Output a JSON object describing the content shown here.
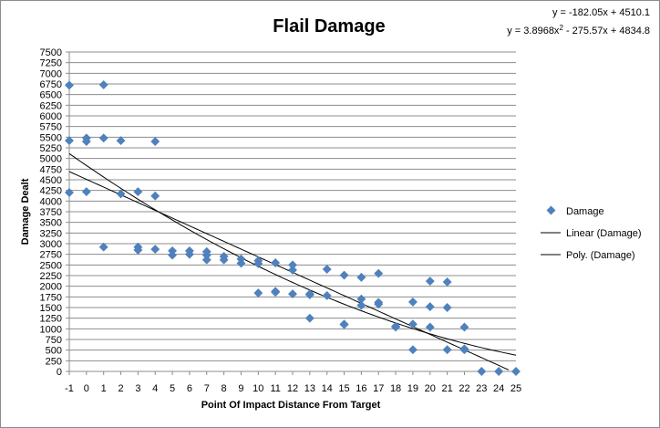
{
  "chart_data": {
    "type": "scatter",
    "title": "Flail Damage",
    "xlabel": "Point Of Impact Distance From Target",
    "ylabel": "Damage Dealt",
    "xlim": [
      -1,
      25
    ],
    "ylim": [
      0,
      7500
    ],
    "x_ticks": [
      -1,
      0,
      1,
      2,
      3,
      4,
      5,
      6,
      7,
      8,
      9,
      10,
      11,
      12,
      13,
      14,
      15,
      16,
      17,
      18,
      19,
      20,
      21,
      22,
      23,
      24,
      25
    ],
    "y_ticks": [
      0,
      250,
      500,
      750,
      1000,
      1250,
      1500,
      1750,
      2000,
      2250,
      2500,
      2750,
      3000,
      3250,
      3500,
      3750,
      4000,
      4250,
      4500,
      4750,
      5000,
      5250,
      5500,
      5750,
      6000,
      6250,
      6500,
      6750,
      7000,
      7250,
      7500
    ],
    "grid": "horizontal",
    "legend_position": "right",
    "marker_color": "#4f81bd",
    "series": [
      {
        "name": "Damage",
        "points": [
          [
            -1,
            6720
          ],
          [
            -1,
            5420
          ],
          [
            -1,
            4200
          ],
          [
            0,
            5480
          ],
          [
            0,
            5400
          ],
          [
            0,
            4220
          ],
          [
            1,
            6730
          ],
          [
            1,
            5480
          ],
          [
            1,
            2920
          ],
          [
            2,
            5420
          ],
          [
            2,
            4170
          ],
          [
            3,
            4220
          ],
          [
            3,
            2920
          ],
          [
            3,
            2850
          ],
          [
            4,
            5400
          ],
          [
            4,
            4120
          ],
          [
            4,
            2870
          ],
          [
            5,
            2830
          ],
          [
            5,
            2730
          ],
          [
            6,
            2830
          ],
          [
            6,
            2750
          ],
          [
            7,
            2810
          ],
          [
            7,
            2730
          ],
          [
            7,
            2620
          ],
          [
            8,
            2700
          ],
          [
            8,
            2620
          ],
          [
            9,
            2640
          ],
          [
            9,
            2540
          ],
          [
            10,
            2600
          ],
          [
            10,
            2530
          ],
          [
            10,
            1840
          ],
          [
            11,
            2550
          ],
          [
            11,
            1880
          ],
          [
            11,
            1860
          ],
          [
            12,
            2500
          ],
          [
            12,
            2380
          ],
          [
            12,
            1820
          ],
          [
            13,
            1820
          ],
          [
            13,
            1800
          ],
          [
            13,
            1250
          ],
          [
            14,
            2400
          ],
          [
            14,
            1780
          ],
          [
            15,
            2260
          ],
          [
            15,
            1110
          ],
          [
            15,
            1100
          ],
          [
            16,
            2210
          ],
          [
            16,
            1700
          ],
          [
            16,
            1550
          ],
          [
            17,
            2300
          ],
          [
            17,
            1620
          ],
          [
            17,
            1580
          ],
          [
            18,
            1060
          ],
          [
            18,
            1040
          ],
          [
            19,
            1630
          ],
          [
            19,
            1110
          ],
          [
            19,
            510
          ],
          [
            20,
            2120
          ],
          [
            20,
            1520
          ],
          [
            20,
            1040
          ],
          [
            21,
            2100
          ],
          [
            21,
            1500
          ],
          [
            21,
            510
          ],
          [
            22,
            1040
          ],
          [
            22,
            530
          ],
          [
            22,
            510
          ],
          [
            23,
            0
          ],
          [
            24,
            0
          ],
          [
            25,
            0
          ]
        ]
      }
    ],
    "trendlines": [
      {
        "name": "Linear (Damage)",
        "kind": "linear",
        "coefficients": [
          4510.1,
          -182.05
        ],
        "equation": "y = -182.05x + 4510.1"
      },
      {
        "name": "Poly. (Damage)",
        "kind": "poly2",
        "coefficients": [
          4834.8,
          -275.57,
          3.8968
        ],
        "equation_prefix": "y = 3.8968x",
        "equation_exp": "2",
        "equation_suffix": " - 275.57x + 4834.8"
      }
    ]
  }
}
